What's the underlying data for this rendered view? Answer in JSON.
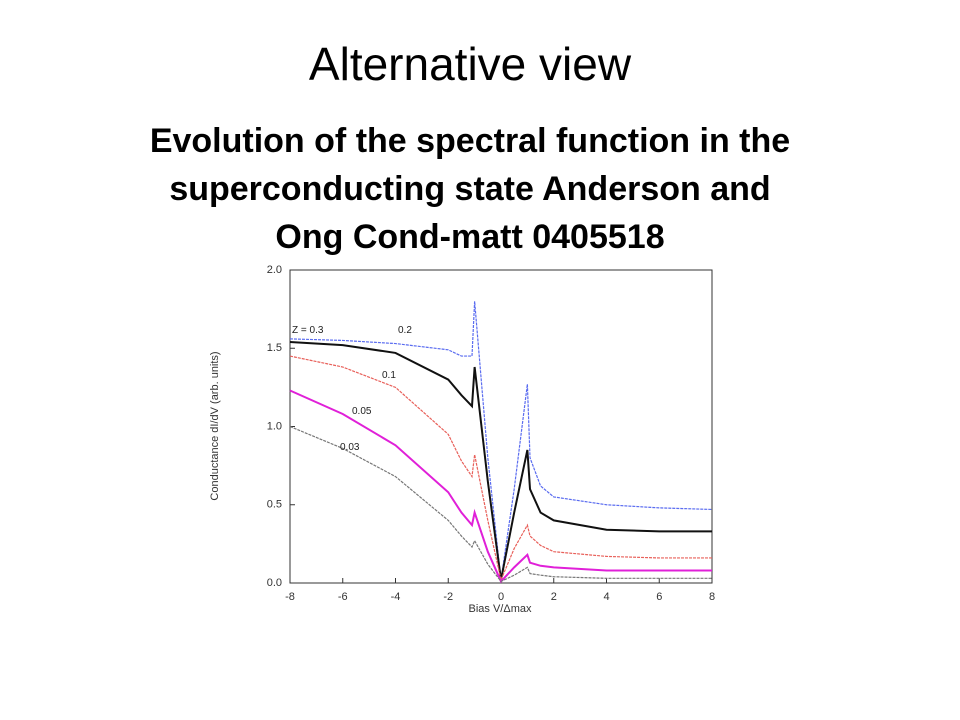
{
  "slide_title": "Alternative view",
  "caption_lines": [
    "Evolution of the spectral function in the",
    "superconducting state Anderson and",
    "Ong Cond-matt 0405518"
  ],
  "chart_data": {
    "type": "line",
    "xlabel": "Bias V/Δmax",
    "ylabel": "Conductance dI/dV (arb. units)",
    "x": [
      -8,
      -6,
      -4,
      -2,
      -1.5,
      -1.1,
      -1,
      -0.5,
      0,
      0.5,
      1,
      1.1,
      1.5,
      2,
      4,
      6,
      8
    ],
    "xlim": [
      -8,
      8
    ],
    "xticks": [
      -8,
      -6,
      -4,
      -2,
      0,
      2,
      4,
      6,
      8
    ],
    "ylim": [
      0,
      2
    ],
    "yticks": [
      {
        "value": 0,
        "label": "0.0"
      },
      0.5,
      {
        "value": 1,
        "label": "1.0"
      },
      1.5,
      {
        "value": 2,
        "label": "2.0"
      }
    ],
    "series": [
      {
        "name": "Z = 0.3",
        "color": "#5a6cf0",
        "values": [
          1.56,
          1.55,
          1.53,
          1.49,
          1.45,
          1.45,
          1.8,
          0.8,
          0.02,
          0.6,
          1.27,
          0.8,
          0.62,
          0.55,
          0.5,
          0.48,
          0.47
        ]
      },
      {
        "name": "0.2",
        "color": "#111111",
        "values": [
          1.54,
          1.52,
          1.47,
          1.3,
          1.2,
          1.13,
          1.38,
          0.65,
          0.02,
          0.45,
          0.85,
          0.6,
          0.45,
          0.4,
          0.34,
          0.33,
          0.33
        ]
      },
      {
        "name": "0.1",
        "color": "#e8605a",
        "values": [
          1.45,
          1.38,
          1.25,
          0.95,
          0.78,
          0.68,
          0.82,
          0.4,
          0.02,
          0.22,
          0.37,
          0.3,
          0.24,
          0.2,
          0.17,
          0.16,
          0.16
        ]
      },
      {
        "name": "0.05",
        "color": "#e020d8",
        "values": [
          1.23,
          1.08,
          0.88,
          0.58,
          0.45,
          0.37,
          0.45,
          0.2,
          0.01,
          0.1,
          0.18,
          0.13,
          0.11,
          0.1,
          0.08,
          0.08,
          0.08
        ]
      },
      {
        "name": "0.03",
        "color": "#777777",
        "values": [
          1.0,
          0.86,
          0.68,
          0.4,
          0.3,
          0.23,
          0.27,
          0.12,
          0.01,
          0.05,
          0.1,
          0.06,
          0.05,
          0.04,
          0.03,
          0.03,
          0.03
        ]
      }
    ]
  }
}
